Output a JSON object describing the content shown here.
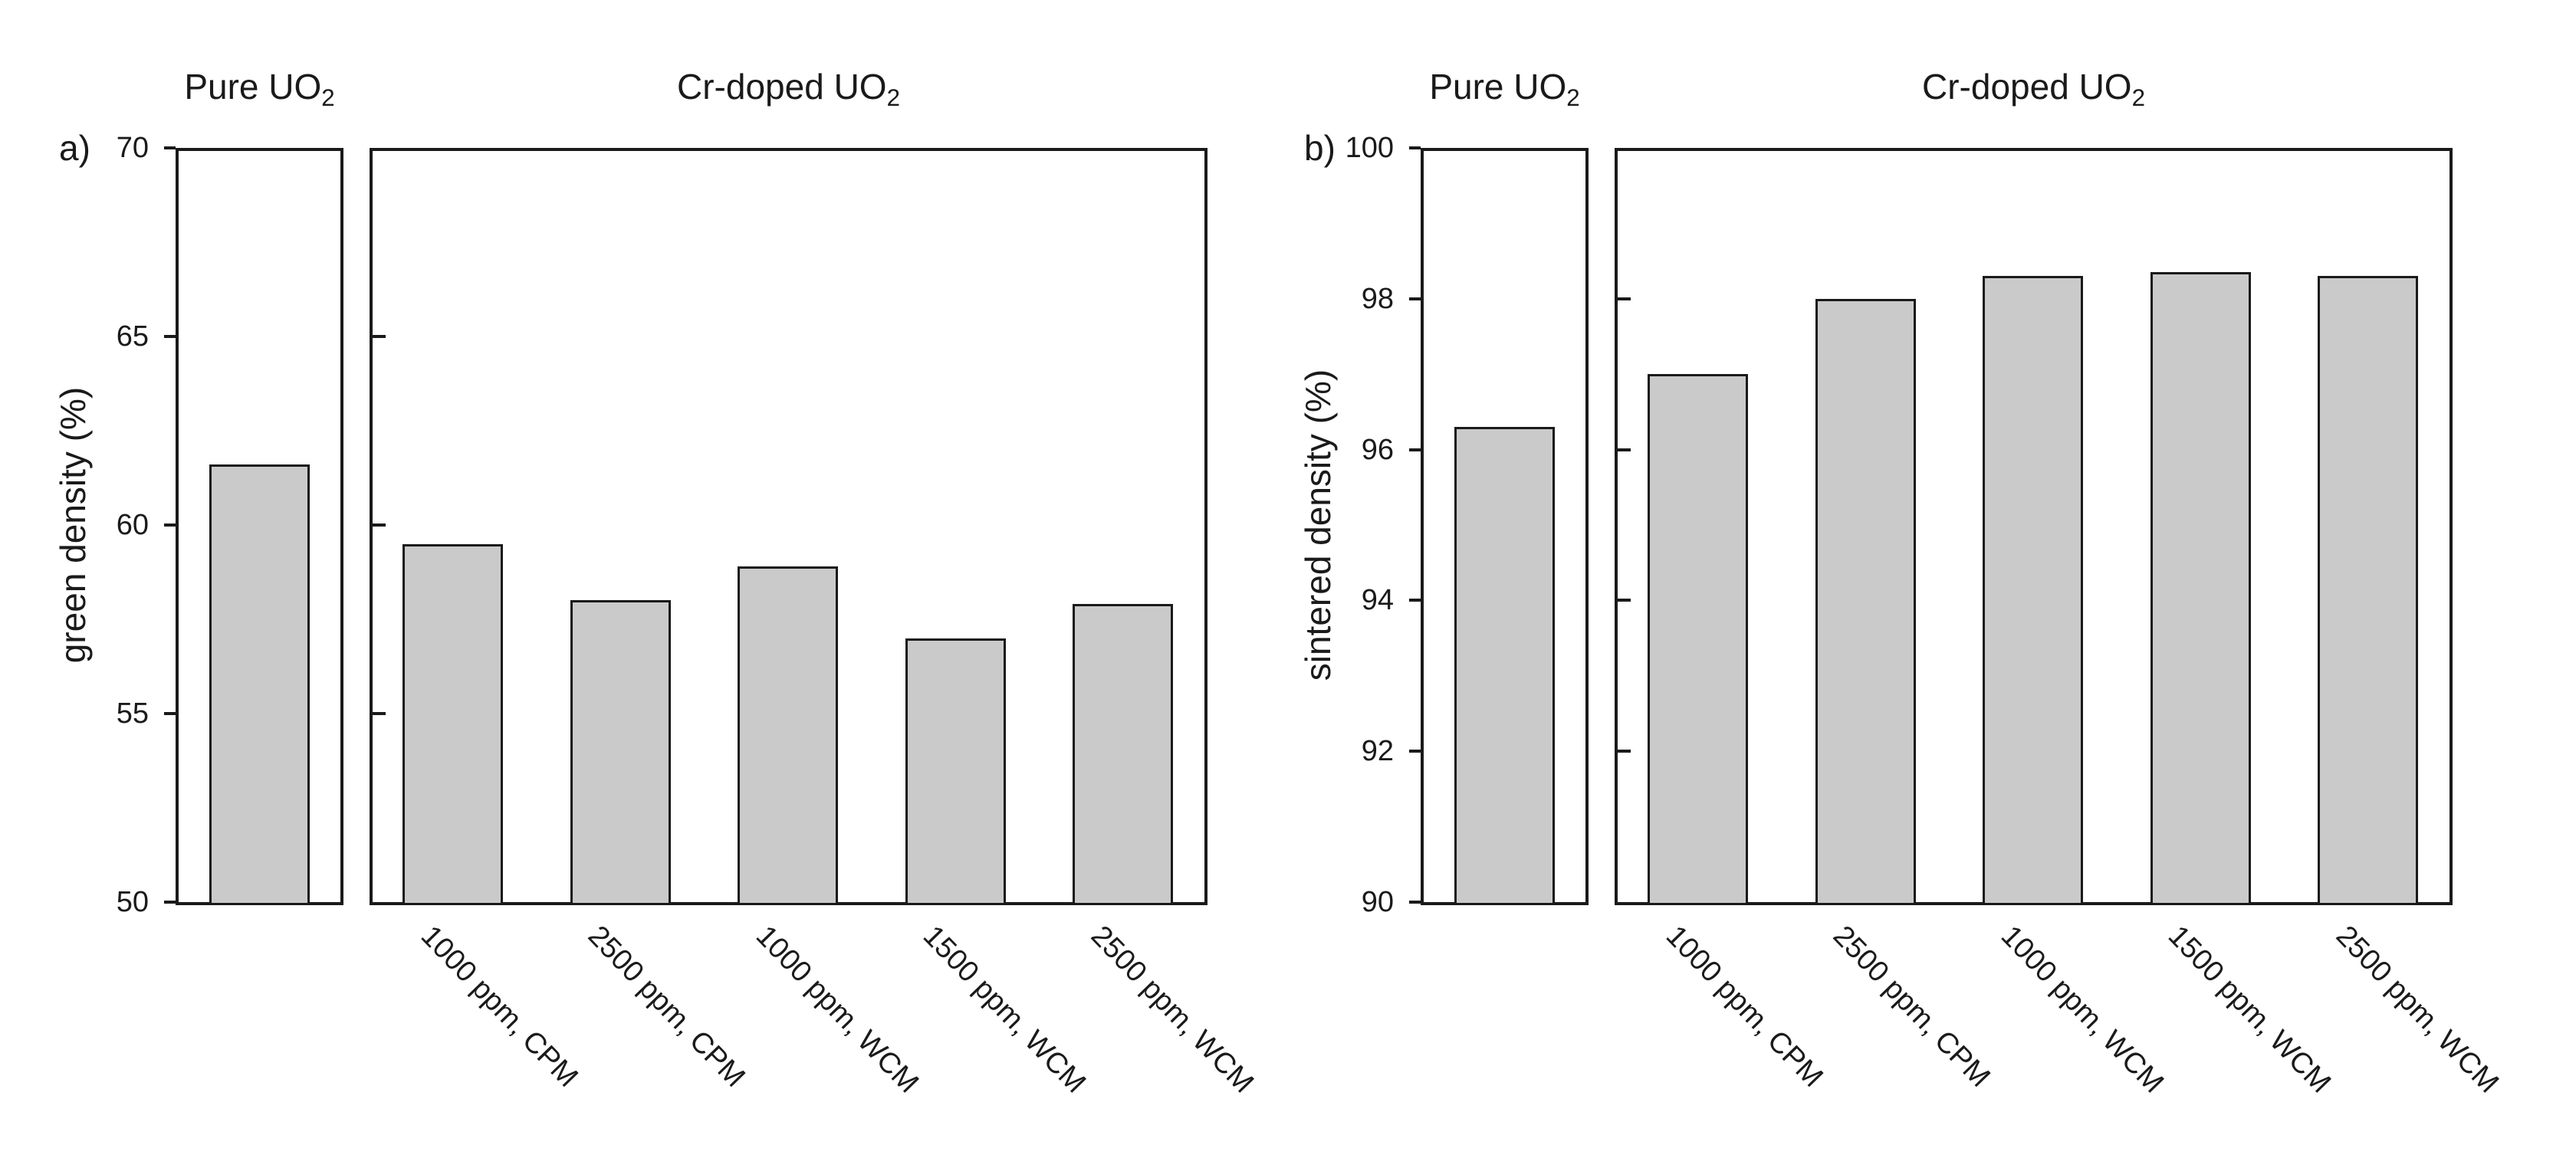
{
  "colors": {
    "background": "#ffffff",
    "bar_fill": "#cacaca",
    "bar_edge": "#1a1a1a",
    "axis_line": "#1a1a1a",
    "text": "#1a1a1a"
  },
  "chart_data": [
    {
      "type": "bar",
      "panel_letter": "a)",
      "ylabel": "green density (%)",
      "ylim": [
        50,
        70
      ],
      "ytick_step": 5,
      "yticks": [
        "70",
        "65",
        "60",
        "55",
        "50"
      ],
      "grid": false,
      "legend": null,
      "subpanels": [
        {
          "title": "Pure UO",
          "title_subscript": "2",
          "categories": [
            ""
          ],
          "values": [
            61.6
          ]
        },
        {
          "title": "Cr-doped UO",
          "title_subscript": "2",
          "categories": [
            "1000 ppm, CPM",
            "2500 ppm, CPM",
            "1000 ppm, WCM",
            "1500 ppm, WCM",
            "2500 ppm, WCM"
          ],
          "values": [
            59.5,
            58.0,
            58.9,
            57.0,
            57.9
          ]
        }
      ]
    },
    {
      "type": "bar",
      "panel_letter": "b)",
      "ylabel": "sintered density (%)",
      "ylim": [
        90,
        100
      ],
      "ytick_step": 2,
      "yticks": [
        "100",
        "98",
        "96",
        "94",
        "92",
        "90"
      ],
      "grid": false,
      "legend": null,
      "subpanels": [
        {
          "title": "Pure UO",
          "title_subscript": "2",
          "categories": [
            ""
          ],
          "values": [
            96.3
          ]
        },
        {
          "title": "Cr-doped UO",
          "title_subscript": "2",
          "categories": [
            "1000 ppm, CPM",
            "2500 ppm, CPM",
            "1000 ppm, WCM",
            "1500 ppm, WCM",
            "2500 ppm, WCM"
          ],
          "values": [
            97.0,
            98.0,
            98.3,
            98.35,
            98.3
          ]
        }
      ]
    }
  ]
}
